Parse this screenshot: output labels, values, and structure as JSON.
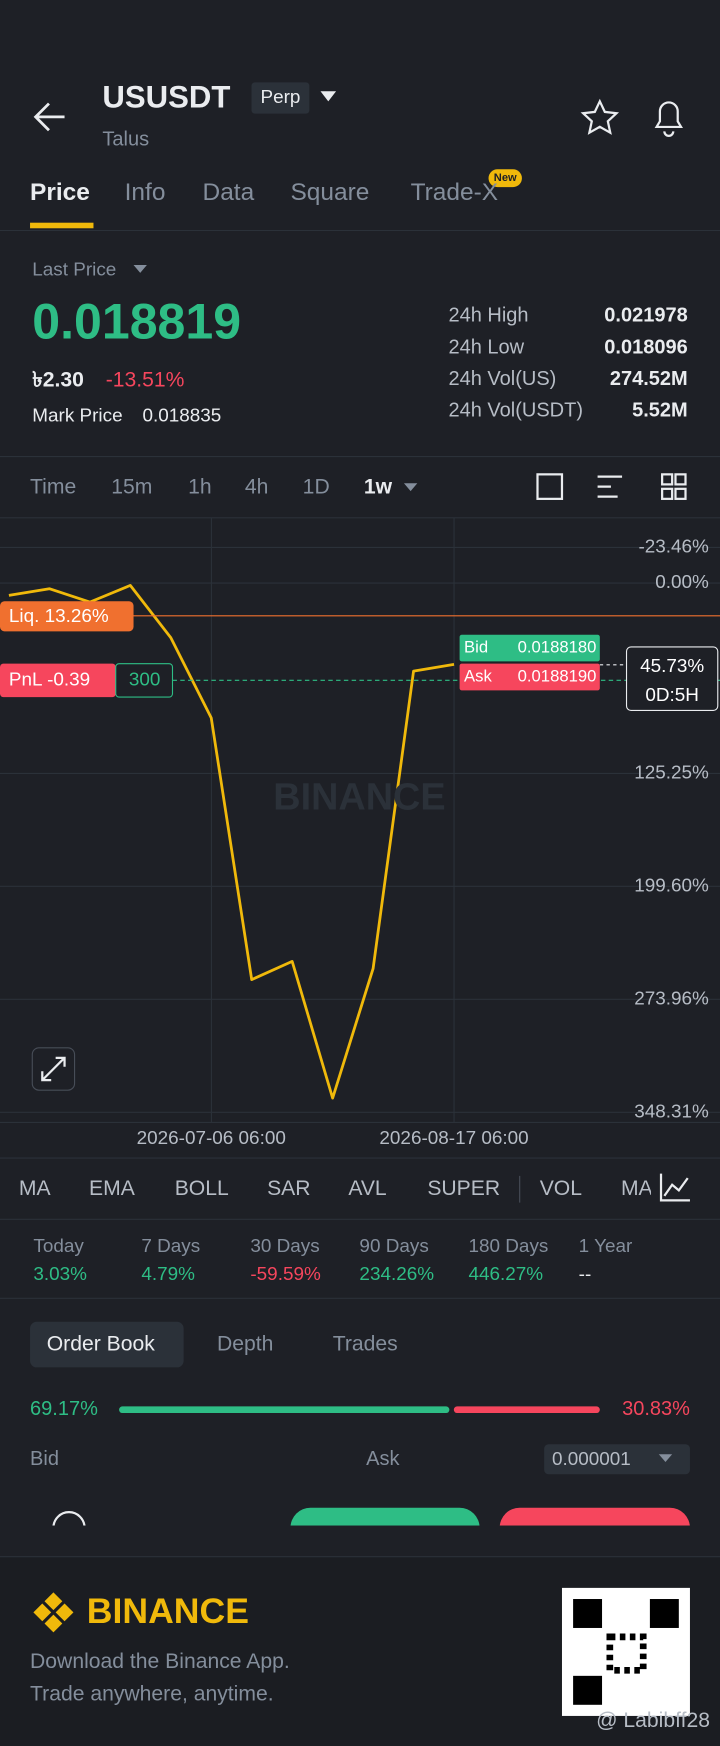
{
  "header": {
    "symbol": "USUSDT",
    "badge": "Perp",
    "subtitle": "Talus"
  },
  "tabs": [
    "Price",
    "Info",
    "Data",
    "Square",
    "Trade-X"
  ],
  "new_badge": "New",
  "price": {
    "label": "Last Price",
    "last": "0.018819",
    "local": "৳2.30",
    "change": "-13.51%",
    "mark_label": "Mark Price",
    "mark": "0.018835"
  },
  "stats": [
    [
      "24h High",
      "0.021978"
    ],
    [
      "24h Low",
      "0.018096"
    ],
    [
      "24h Vol(US)",
      "274.52M"
    ],
    [
      "24h Vol(USDT)",
      "5.52M"
    ]
  ],
  "intervals": [
    "Time",
    "15m",
    "1h",
    "4h",
    "1D",
    "1w"
  ],
  "chart_data": {
    "type": "line",
    "categories": [
      null,
      null,
      null,
      null,
      null,
      "2026-07-06 06:00",
      null,
      null,
      null,
      null,
      null,
      "2026-08-17 06:00"
    ],
    "series": [
      {
        "color": "#f0b90b",
        "values": [
          8.1,
          3.7,
          12.5,
          1.5,
          35.9,
          88.7,
          261,
          249,
          339,
          253.7,
          57.9,
          53.5
        ]
      }
    ],
    "ylim": [
      -43,
      355
    ],
    "y_inverted": true,
    "grid": true,
    "yticks": [
      {
        "value": -23.46,
        "label": "-23.46%"
      },
      {
        "value": 0,
        "label": "0.00%"
      },
      {
        "value": 125.25,
        "label": "125.25%"
      },
      {
        "value": 199.6,
        "label": "199.60%"
      },
      {
        "value": 273.96,
        "label": "273.96%"
      },
      {
        "value": 348.31,
        "label": "348.31%"
      }
    ],
    "annotations": {
      "liq": "Liq. 13.26%",
      "pnl": "PnL -0.39",
      "qty": "300",
      "bid_label": "Bid",
      "bid": "0.0188180",
      "ask_label": "Ask",
      "ask": "0.0188190",
      "current": "45.73%",
      "countdown": "0D:5H",
      "watermark": "BINANCE"
    }
  },
  "indicators": [
    "MA",
    "EMA",
    "BOLL",
    "SAR",
    "AVL",
    "SUPER",
    "VOL",
    "MA"
  ],
  "performance": [
    [
      "Today",
      "3.03%"
    ],
    [
      "7 Days",
      "4.79%"
    ],
    [
      "30 Days",
      "-59.59%"
    ],
    [
      "90 Days",
      "234.26%"
    ],
    [
      "180 Days",
      "446.27%"
    ],
    [
      "1 Year",
      "--"
    ]
  ],
  "orderbook": {
    "tabs": [
      "Order Book",
      "Depth",
      "Trades"
    ],
    "ratio": {
      "values": [
        69.17,
        30.83
      ],
      "value_labels": [
        "69.17%",
        "30.83%"
      ]
    },
    "bid": "Bid",
    "ask": "Ask",
    "precision": "0.000001"
  },
  "footer": {
    "brand": "BINANCE",
    "line1": "Download the Binance App.",
    "line2": "Trade anywhere, anytime.",
    "user": "@ Labibff28"
  }
}
